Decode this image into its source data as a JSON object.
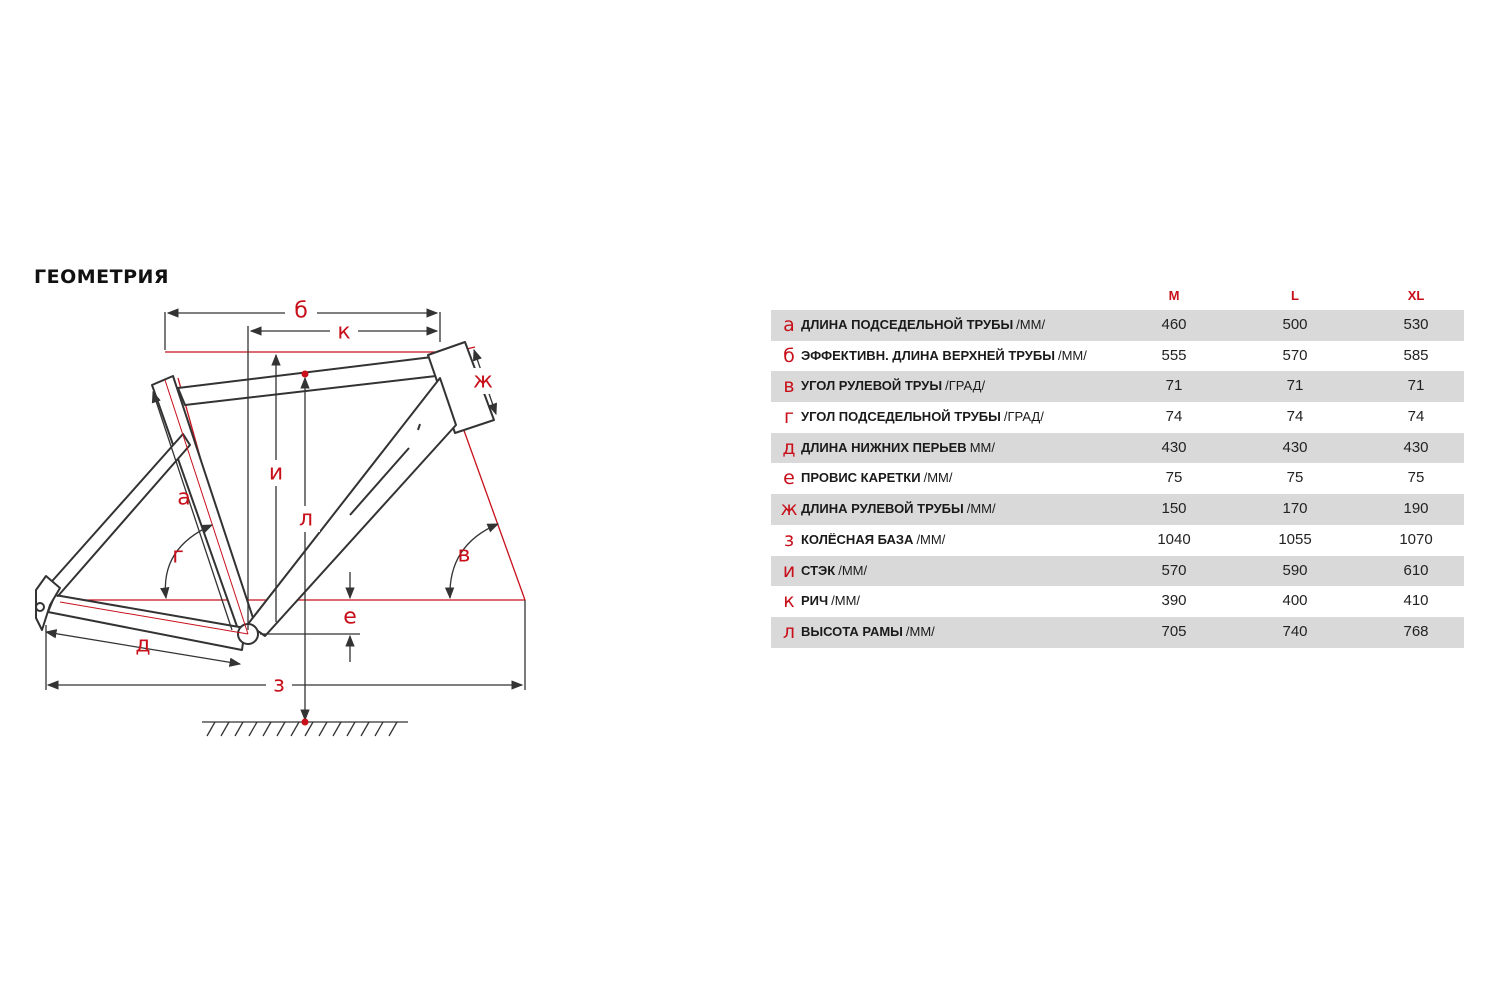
{
  "title": "ГЕОМЕТРИЯ",
  "diagram_labels": {
    "a": "а",
    "b": "б",
    "v": "в",
    "g": "г",
    "d": "д",
    "e": "е",
    "zh": "ж",
    "z": "з",
    "i": "и",
    "k": "к",
    "l": "л"
  },
  "colors": {
    "accent": "#c8101b",
    "row_shade": "#d9d9d9",
    "frame": "#333333"
  },
  "table": {
    "sizes": [
      "M",
      "L",
      "XL"
    ],
    "rows": [
      {
        "letter": "а",
        "label": "ДЛИНА ПОДСЕДЕЛЬНОЙ ТРУБЫ",
        "unit": "/ММ/",
        "values": [
          "460",
          "500",
          "530"
        ]
      },
      {
        "letter": "б",
        "label": "ЭФФЕКТИВН. ДЛИНА ВЕРХНЕЙ ТРУБЫ",
        "unit": "/ММ/",
        "values": [
          "555",
          "570",
          "585"
        ]
      },
      {
        "letter": "в",
        "label": "УГОЛ РУЛЕВОЙ ТРУЫ",
        "unit": "/ГРАД/",
        "values": [
          "71",
          "71",
          "71"
        ]
      },
      {
        "letter": "г",
        "label": "УГОЛ ПОДСЕДЕЛЬНОЙ ТРУБЫ",
        "unit": "/ГРАД/",
        "values": [
          "74",
          "74",
          "74"
        ]
      },
      {
        "letter": "д",
        "label": "ДЛИНА НИЖНИХ ПЕРЬЕВ",
        "unit": "ММ/",
        "values": [
          "430",
          "430",
          "430"
        ]
      },
      {
        "letter": "е",
        "label": "ПРОВИС КАРЕТКИ",
        "unit": "/ММ/",
        "values": [
          "75",
          "75",
          "75"
        ]
      },
      {
        "letter": "ж",
        "label": "ДЛИНА РУЛЕВОЙ ТРУБЫ",
        "unit": "/ММ/",
        "values": [
          "150",
          "170",
          "190"
        ]
      },
      {
        "letter": "з",
        "label": "КОЛЁСНАЯ БАЗА",
        "unit": "/ММ/",
        "values": [
          "1040",
          "1055",
          "1070"
        ]
      },
      {
        "letter": "и",
        "label": "СТЭК",
        "unit": "/ММ/",
        "values": [
          "570",
          "590",
          "610"
        ]
      },
      {
        "letter": "к",
        "label": "РИЧ",
        "unit": "/ММ/",
        "values": [
          "390",
          "400",
          "410"
        ]
      },
      {
        "letter": "л",
        "label": "ВЫСОТА РАМЫ",
        "unit": "/ММ/",
        "values": [
          "705",
          "740",
          "768"
        ]
      }
    ]
  }
}
